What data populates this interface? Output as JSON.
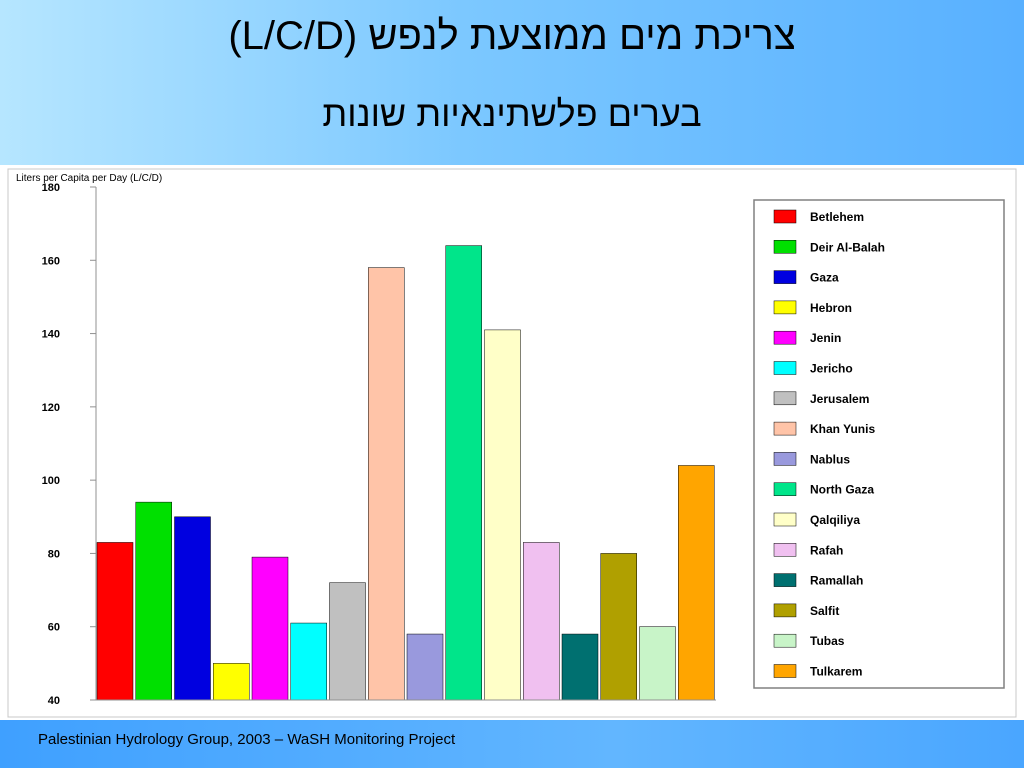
{
  "slide": {
    "title_line1": "צריכת מים ממוצעת לנפש (L/C/D)",
    "title_line2": "בערים פלשתינאיות שונות",
    "footer": "Palestinian Hydrology Group, 2003 – WaSH Monitoring Project"
  },
  "chart_data": {
    "type": "bar",
    "ylabel": "Liters per Capita per Day (L/C/D)",
    "ylim": [
      40,
      180
    ],
    "yticks": [
      40,
      60,
      80,
      100,
      120,
      140,
      160,
      180
    ],
    "grid": false,
    "legend_position": "right",
    "categories": [
      "Betlehem",
      "Deir Al-Balah",
      "Gaza",
      "Hebron",
      "Jenin",
      "Jericho",
      "Jerusalem",
      "Khan Yunis",
      "Nablus",
      "North Gaza",
      "Qalqiliya",
      "Rafah",
      "Ramallah",
      "Salfit",
      "Tubas",
      "Tulkarem"
    ],
    "values": [
      83,
      94,
      90,
      50,
      79,
      61,
      72,
      158,
      58,
      164,
      141,
      83,
      58,
      80,
      60,
      104
    ],
    "colors": [
      "#ff0000",
      "#00e000",
      "#0000e0",
      "#ffff00",
      "#ff00ff",
      "#00ffff",
      "#c0c0c0",
      "#ffc4a8",
      "#9999dd",
      "#00e58a",
      "#ffffc8",
      "#f0c0f0",
      "#007070",
      "#b0a000",
      "#c8f4c8",
      "#ffa500"
    ]
  }
}
